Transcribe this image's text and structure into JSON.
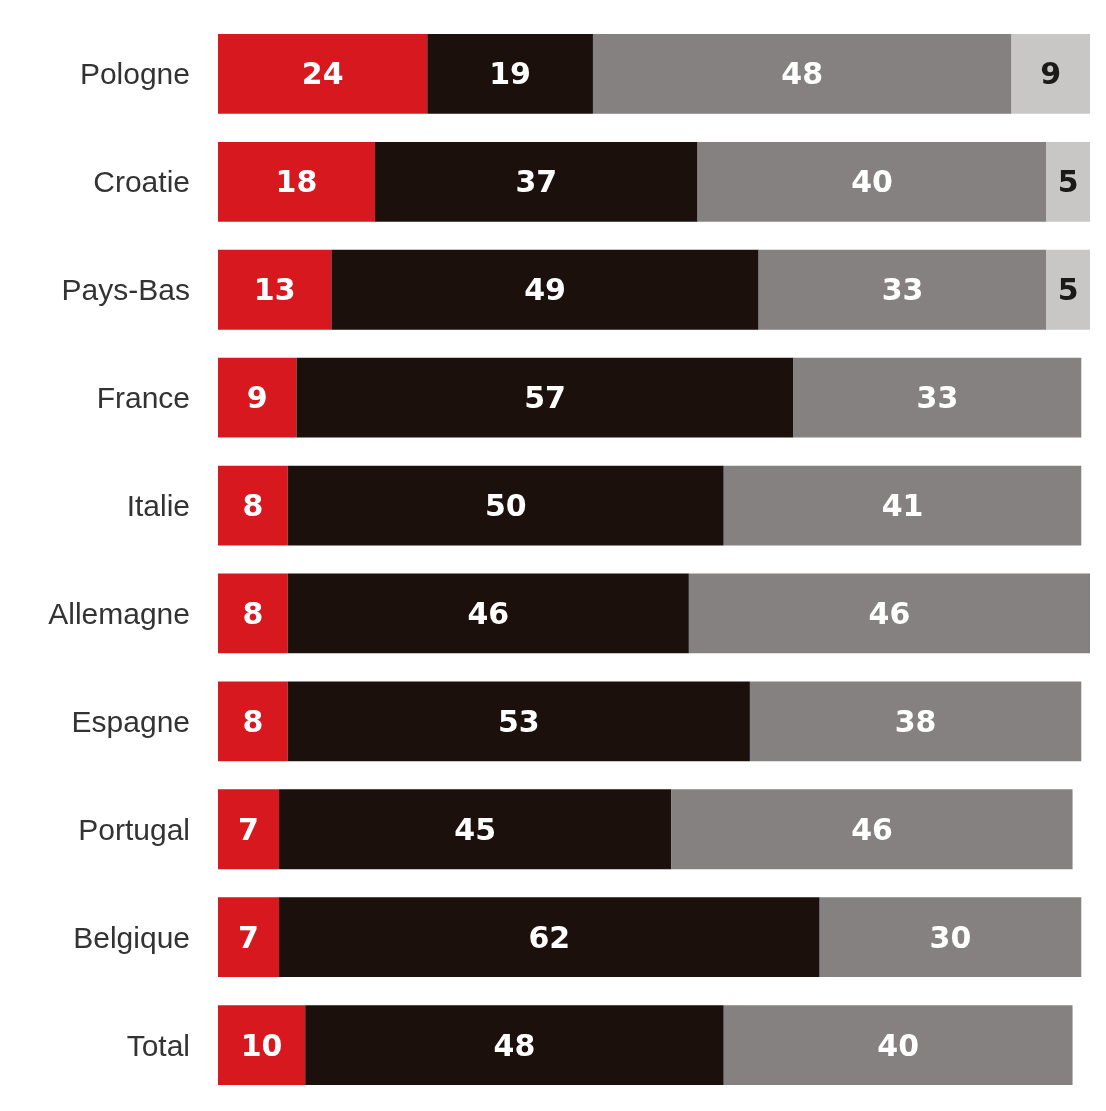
{
  "chart_data": {
    "type": "bar",
    "orientation": "horizontal",
    "stacked": true,
    "data_labels": true,
    "tick_labels": "y",
    "categories": [
      "Pologne",
      "Croatie",
      "Pays-Bas",
      "France",
      "Italie",
      "Allemagne",
      "Espagne",
      "Portugal",
      "Belgique",
      "Total"
    ],
    "series": [
      {
        "color": "#d7191f",
        "values": [
          24,
          18,
          13,
          9,
          8,
          8,
          8,
          7,
          7,
          10
        ]
      },
      {
        "color": "#1c100c",
        "values": [
          19,
          37,
          49,
          57,
          50,
          46,
          53,
          45,
          62,
          48
        ]
      },
      {
        "color": "#858180",
        "values": [
          48,
          40,
          33,
          33,
          41,
          46,
          38,
          46,
          30,
          40
        ]
      },
      {
        "color": "#c9c7c5",
        "values": [
          9,
          5,
          5,
          null,
          null,
          null,
          null,
          null,
          null,
          null
        ]
      }
    ]
  }
}
